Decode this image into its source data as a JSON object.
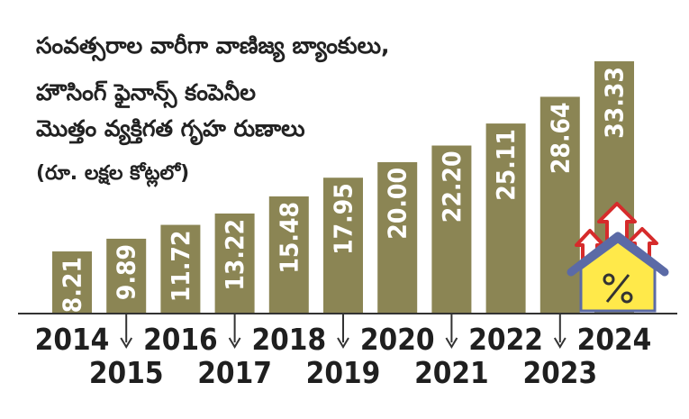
{
  "chart_data": {
    "type": "bar",
    "title_lines": [
      "సంవత్సరాల వారీగా వాణిజ్య బ్యాంకులు,",
      "హౌసింగ్ ఫైనాన్స్ కంపెనీల",
      "మొత్తం వ్యక్తిగత గృహ రుణాలు"
    ],
    "unit": "(రూ. లక్షల కోట్లలో)",
    "categories": [
      "2014",
      "2015",
      "2016",
      "2017",
      "2018",
      "2019",
      "2020",
      "2021",
      "2022",
      "2023",
      "2024"
    ],
    "values": [
      8.21,
      9.89,
      11.72,
      13.22,
      15.48,
      17.95,
      20.0,
      22.2,
      25.11,
      28.64,
      33.33
    ],
    "value_labels": [
      "8.21",
      "9.89",
      "11.72",
      "13.22",
      "15.48",
      "17.95",
      "20.00",
      "22.20",
      "25.11",
      "28.64",
      "33.33"
    ],
    "bar_color": "#8b8554",
    "arrow_color": "#d62b2b",
    "house_wall_color": "#ffe94a",
    "house_roof_color": "#5b6aa6",
    "icon": "house-percent-icon"
  }
}
